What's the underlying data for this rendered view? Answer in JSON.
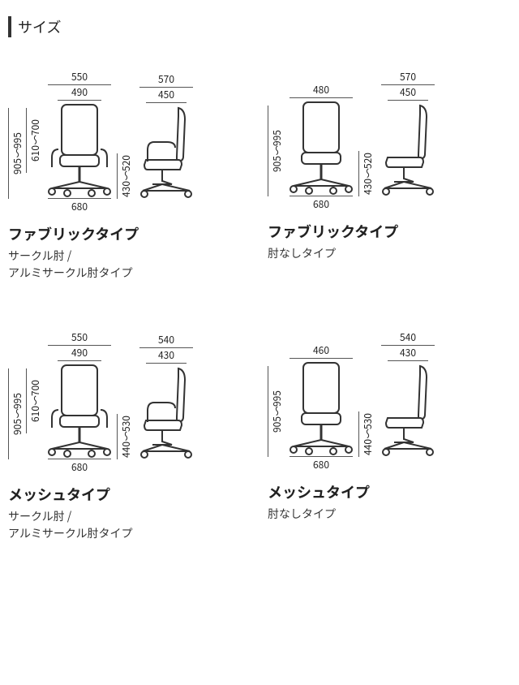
{
  "section_title": "サイズ",
  "diagrams": {
    "stroke": "#333333",
    "fill": "#ffffff",
    "bg": "#ffffff",
    "dim_color": "#555555",
    "font_size_dim": 12,
    "font_size_type_title": 18,
    "font_size_type_sub": 14,
    "chair_front_w": 90,
    "chair_front_h": 120,
    "chair_side_w": 80,
    "chair_side_h": 120
  },
  "items": [
    {
      "type_title": "ファブリックタイプ",
      "type_sub": "サークル肘 /\nアルミサークル肘タイプ",
      "has_arms": true,
      "back_mesh": false,
      "front_top1": "550",
      "front_top2": "490",
      "front_bottom": "680",
      "front_side1": "905～995",
      "front_side2": "610～700",
      "side_top1": "570",
      "side_top2": "450",
      "side_side": "430～520"
    },
    {
      "type_title": "ファブリックタイプ",
      "type_sub": "肘なしタイプ",
      "has_arms": false,
      "back_mesh": false,
      "front_top1": "480",
      "front_top2": null,
      "front_bottom": "680",
      "front_side1": "905～995",
      "front_side2": null,
      "side_top1": "570",
      "side_top2": "450",
      "side_side": "430～520"
    },
    {
      "type_title": "メッシュタイプ",
      "type_sub": "サークル肘 /\nアルミサークル肘タイプ",
      "has_arms": true,
      "back_mesh": true,
      "front_top1": "550",
      "front_top2": "490",
      "front_bottom": "680",
      "front_side1": "905～995",
      "front_side2": "610～700",
      "side_top1": "540",
      "side_top2": "430",
      "side_side": "440～530"
    },
    {
      "type_title": "メッシュタイプ",
      "type_sub": "肘なしタイプ",
      "has_arms": false,
      "back_mesh": true,
      "front_top1": "460",
      "front_top2": null,
      "front_bottom": "680",
      "front_side1": "905～995",
      "front_side2": null,
      "side_top1": "540",
      "side_top2": "430",
      "side_side": "440～530"
    }
  ]
}
